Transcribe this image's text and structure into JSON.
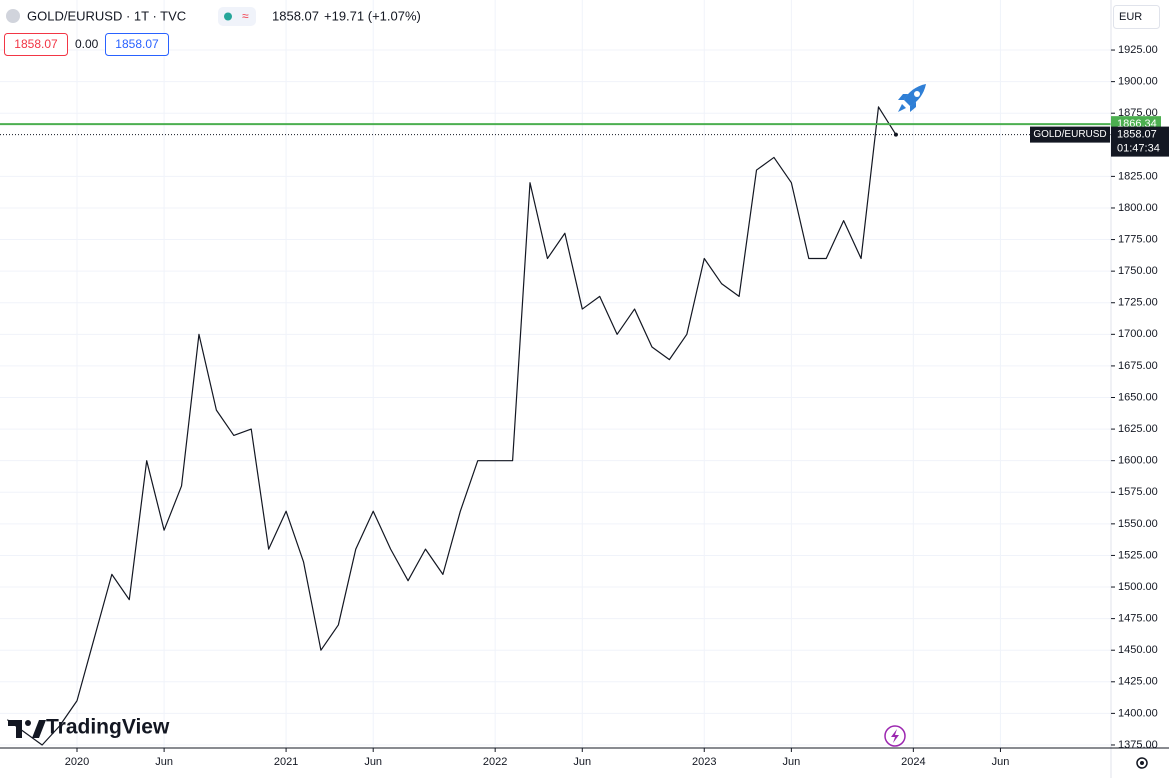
{
  "toolbar": {
    "title": "GOLD/EURUSD · 1T · TVC",
    "change": "+19.71 (+1.07%)",
    "spread": "0.00",
    "currency": "EUR",
    "countdown": "01:47:34",
    "brand": "TradingView"
  },
  "chart_data": {
    "type": "line",
    "name": "GOLD/EURUSD",
    "color": "#131722",
    "x": [
      "2019-09",
      "2019-10",
      "2019-11",
      "2019-12",
      "2020-01",
      "2020-02",
      "2020-03",
      "2020-04",
      "2020-05",
      "2020-06",
      "2020-07",
      "2020-08",
      "2020-09",
      "2020-10",
      "2020-11",
      "2020-12",
      "2021-01",
      "2021-02",
      "2021-03",
      "2021-04",
      "2021-05",
      "2021-06",
      "2021-07",
      "2021-08",
      "2021-09",
      "2021-10",
      "2021-11",
      "2021-12",
      "2022-01",
      "2022-02",
      "2022-03",
      "2022-04",
      "2022-05",
      "2022-06",
      "2022-07",
      "2022-08",
      "2022-09",
      "2022-10",
      "2022-11",
      "2022-12",
      "2023-01",
      "2023-02",
      "2023-03",
      "2023-04",
      "2023-05",
      "2023-06",
      "2023-07",
      "2023-08",
      "2023-09",
      "2023-10",
      "2023-11",
      "2023-12"
    ],
    "values": [
      1395,
      1385,
      1375,
      1390,
      1410,
      1460,
      1510,
      1490,
      1600,
      1545,
      1580,
      1700,
      1640,
      1620,
      1625,
      1530,
      1560,
      1520,
      1450,
      1470,
      1530,
      1560,
      1530,
      1505,
      1530,
      1510,
      1560,
      1600,
      1600,
      1600,
      1820,
      1760,
      1780,
      1720,
      1730,
      1700,
      1720,
      1690,
      1680,
      1700,
      1760,
      1740,
      1730,
      1830,
      1840,
      1820,
      1760,
      1760,
      1790,
      1760,
      1880,
      1858.07
    ],
    "xlim": [
      "2019-09",
      "2024-12"
    ],
    "xticks": [
      {
        "value": "2020-01",
        "label": "2020"
      },
      {
        "value": "2020-06",
        "label": "Jun"
      },
      {
        "value": "2021-01",
        "label": "2021"
      },
      {
        "value": "2021-06",
        "label": "Jun"
      },
      {
        "value": "2022-01",
        "label": "2022"
      },
      {
        "value": "2022-06",
        "label": "Jun"
      },
      {
        "value": "2023-01",
        "label": "2023"
      },
      {
        "value": "2023-06",
        "label": "Jun"
      },
      {
        "value": "2024-01",
        "label": "2024"
      },
      {
        "value": "2024-06",
        "label": "Jun"
      }
    ],
    "ylim": [
      1372.6,
      1964.6
    ],
    "yticks": [
      {
        "value": 1375,
        "label": "1375.00"
      },
      {
        "value": 1400,
        "label": "1400.00"
      },
      {
        "value": 1425,
        "label": "1425.00"
      },
      {
        "value": 1450,
        "label": "1450.00"
      },
      {
        "value": 1475,
        "label": "1475.00"
      },
      {
        "value": 1500,
        "label": "1500.00"
      },
      {
        "value": 1525,
        "label": "1525.00"
      },
      {
        "value": 1550,
        "label": "1550.00"
      },
      {
        "value": 1575,
        "label": "1575.00"
      },
      {
        "value": 1600,
        "label": "1600.00"
      },
      {
        "value": 1625,
        "label": "1625.00"
      },
      {
        "value": 1650,
        "label": "1650.00"
      },
      {
        "value": 1675,
        "label": "1675.00"
      },
      {
        "value": 1700,
        "label": "1700.00"
      },
      {
        "value": 1725,
        "label": "1725.00"
      },
      {
        "value": 1750,
        "label": "1750.00"
      },
      {
        "value": 1775,
        "label": "1775.00"
      },
      {
        "value": 1800,
        "label": "1800.00"
      },
      {
        "value": 1825,
        "label": "1825.00"
      },
      {
        "value": 1875,
        "label": "1875.00"
      },
      {
        "value": 1900,
        "label": "1900.00"
      },
      {
        "value": 1925,
        "label": "1925.00"
      }
    ],
    "grid": true,
    "hline": {
      "value": 1866.34,
      "color": "#4caf50"
    }
  }
}
